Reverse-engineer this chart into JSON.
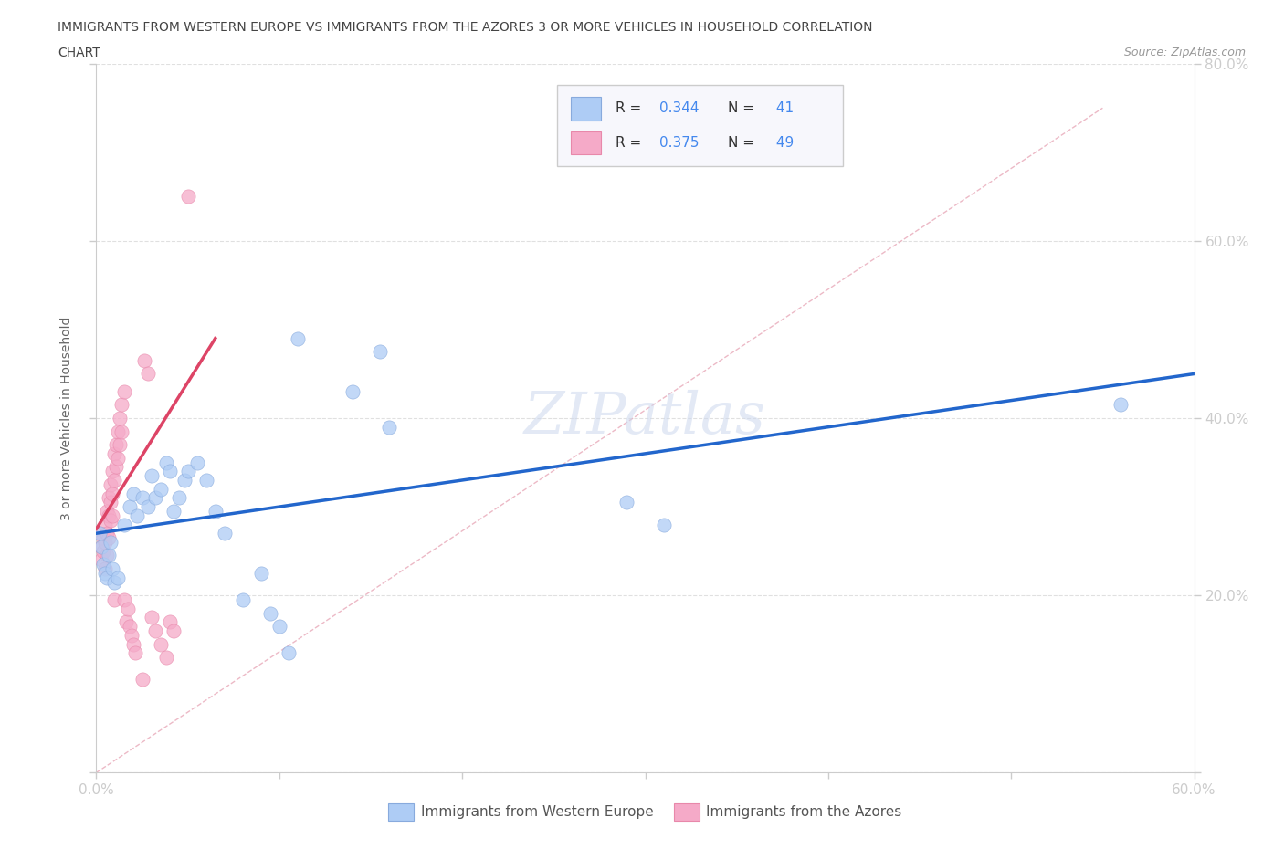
{
  "title_line1": "IMMIGRANTS FROM WESTERN EUROPE VS IMMIGRANTS FROM THE AZORES 3 OR MORE VEHICLES IN HOUSEHOLD CORRELATION",
  "title_line2": "CHART",
  "source_text": "Source: ZipAtlas.com",
  "ylabel": "3 or more Vehicles in Household",
  "xlim": [
    0.0,
    0.6
  ],
  "ylim": [
    0.0,
    0.8
  ],
  "blue_R": 0.344,
  "blue_N": 41,
  "pink_R": 0.375,
  "pink_N": 49,
  "blue_color": "#aeccf5",
  "pink_color": "#f5aac8",
  "blue_line_color": "#2266cc",
  "pink_line_color": "#dd4466",
  "blue_scatter": [
    [
      0.002,
      0.27
    ],
    [
      0.003,
      0.255
    ],
    [
      0.004,
      0.235
    ],
    [
      0.005,
      0.225
    ],
    [
      0.006,
      0.22
    ],
    [
      0.007,
      0.245
    ],
    [
      0.008,
      0.26
    ],
    [
      0.009,
      0.23
    ],
    [
      0.01,
      0.215
    ],
    [
      0.012,
      0.22
    ],
    [
      0.015,
      0.28
    ],
    [
      0.018,
      0.3
    ],
    [
      0.02,
      0.315
    ],
    [
      0.022,
      0.29
    ],
    [
      0.025,
      0.31
    ],
    [
      0.028,
      0.3
    ],
    [
      0.03,
      0.335
    ],
    [
      0.032,
      0.31
    ],
    [
      0.035,
      0.32
    ],
    [
      0.038,
      0.35
    ],
    [
      0.04,
      0.34
    ],
    [
      0.042,
      0.295
    ],
    [
      0.045,
      0.31
    ],
    [
      0.048,
      0.33
    ],
    [
      0.05,
      0.34
    ],
    [
      0.055,
      0.35
    ],
    [
      0.06,
      0.33
    ],
    [
      0.065,
      0.295
    ],
    [
      0.07,
      0.27
    ],
    [
      0.08,
      0.195
    ],
    [
      0.09,
      0.225
    ],
    [
      0.095,
      0.18
    ],
    [
      0.1,
      0.165
    ],
    [
      0.105,
      0.135
    ],
    [
      0.11,
      0.49
    ],
    [
      0.14,
      0.43
    ],
    [
      0.155,
      0.475
    ],
    [
      0.16,
      0.39
    ],
    [
      0.29,
      0.305
    ],
    [
      0.31,
      0.28
    ],
    [
      0.56,
      0.415
    ]
  ],
  "pink_scatter": [
    [
      0.002,
      0.27
    ],
    [
      0.003,
      0.255
    ],
    [
      0.003,
      0.24
    ],
    [
      0.004,
      0.265
    ],
    [
      0.004,
      0.25
    ],
    [
      0.005,
      0.28
    ],
    [
      0.005,
      0.26
    ],
    [
      0.005,
      0.23
    ],
    [
      0.006,
      0.295
    ],
    [
      0.006,
      0.27
    ],
    [
      0.006,
      0.245
    ],
    [
      0.007,
      0.31
    ],
    [
      0.007,
      0.29
    ],
    [
      0.007,
      0.265
    ],
    [
      0.008,
      0.325
    ],
    [
      0.008,
      0.305
    ],
    [
      0.008,
      0.285
    ],
    [
      0.009,
      0.34
    ],
    [
      0.009,
      0.315
    ],
    [
      0.009,
      0.29
    ],
    [
      0.01,
      0.36
    ],
    [
      0.01,
      0.33
    ],
    [
      0.01,
      0.195
    ],
    [
      0.011,
      0.37
    ],
    [
      0.011,
      0.345
    ],
    [
      0.012,
      0.385
    ],
    [
      0.012,
      0.355
    ],
    [
      0.013,
      0.4
    ],
    [
      0.013,
      0.37
    ],
    [
      0.014,
      0.415
    ],
    [
      0.014,
      0.385
    ],
    [
      0.015,
      0.43
    ],
    [
      0.015,
      0.195
    ],
    [
      0.016,
      0.17
    ],
    [
      0.017,
      0.185
    ],
    [
      0.018,
      0.165
    ],
    [
      0.019,
      0.155
    ],
    [
      0.02,
      0.145
    ],
    [
      0.021,
      0.135
    ],
    [
      0.025,
      0.105
    ],
    [
      0.026,
      0.465
    ],
    [
      0.028,
      0.45
    ],
    [
      0.03,
      0.175
    ],
    [
      0.032,
      0.16
    ],
    [
      0.035,
      0.145
    ],
    [
      0.038,
      0.13
    ],
    [
      0.04,
      0.17
    ],
    [
      0.042,
      0.16
    ],
    [
      0.05,
      0.65
    ]
  ],
  "watermark": "ZIPatlas",
  "legend_blue_label": "Immigrants from Western Europe",
  "legend_pink_label": "Immigrants from the Azores",
  "background_color": "#ffffff",
  "grid_color": "#e0e0e0",
  "diag_color": "#e8a0b0"
}
